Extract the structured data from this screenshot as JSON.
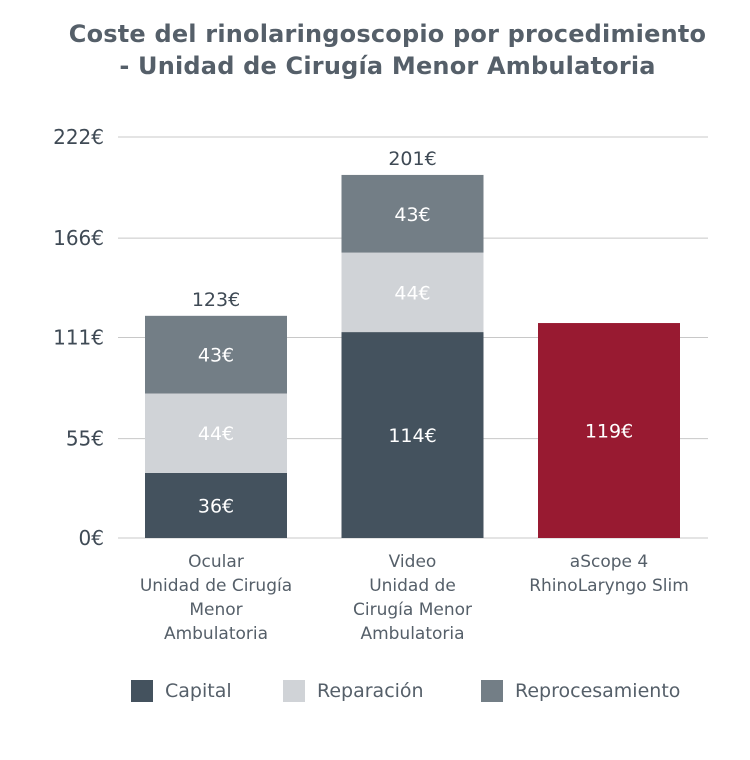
{
  "chart_data": {
    "type": "bar",
    "stacked": true,
    "title": "Coste del rinolaringoscopio por procedimiento - Unidad de Cirugía Menor Ambulatoria",
    "title_lines": [
      "Coste del rinolaringoscopio por procedimiento",
      "- Unidad de Cirugía Menor Ambulatoria"
    ],
    "xlabel": "",
    "ylabel": "",
    "ylim": [
      0,
      222
    ],
    "grid": true,
    "y_ticks": [
      0,
      55,
      111,
      166,
      222
    ],
    "y_tick_labels": [
      "0€",
      "55€",
      "111€",
      "166€",
      "222€"
    ],
    "categories": [
      "Ocular Unidad de Cirugía Menor Ambulatoria",
      "Video Unidad de Cirugía Menor Ambulatoria",
      "aScope 4 RhinoLaryngo Slim"
    ],
    "category_label_lines": [
      [
        "Ocular",
        "Unidad de Cirugía",
        "Menor",
        "Ambulatoria"
      ],
      [
        "Video",
        "Unidad de",
        "Cirugía Menor",
        "Ambulatoria"
      ],
      [
        "aScope 4",
        "RhinoLaryngo Slim"
      ]
    ],
    "series": [
      {
        "name": "Capital",
        "color": "#44525e",
        "values": [
          36,
          114,
          null
        ],
        "labels": [
          "36€",
          "114€",
          null
        ]
      },
      {
        "name": "Reparación",
        "color": "#d0d3d7",
        "values": [
          44,
          44,
          null
        ],
        "labels": [
          "44€",
          "44€",
          null
        ]
      },
      {
        "name": "Reprocesamiento",
        "color": "#737e86",
        "values": [
          43,
          43,
          null
        ],
        "labels": [
          "43€",
          "43€",
          null
        ]
      },
      {
        "name": "aScope 4 RhinoLaryngo Slim",
        "color": "#981a31",
        "values": [
          null,
          null,
          119
        ],
        "labels": [
          null,
          null,
          "119€"
        ],
        "in_legend": false
      }
    ],
    "totals": [
      123,
      201,
      null
    ],
    "total_labels": [
      "123€",
      "201€",
      null
    ],
    "legend": {
      "placement": "bottom",
      "entries": [
        "Capital",
        "Reparación",
        "Reprocesamiento"
      ]
    },
    "colors": {
      "gridline": "#c8c8c8",
      "text": "#3f4a55"
    }
  }
}
